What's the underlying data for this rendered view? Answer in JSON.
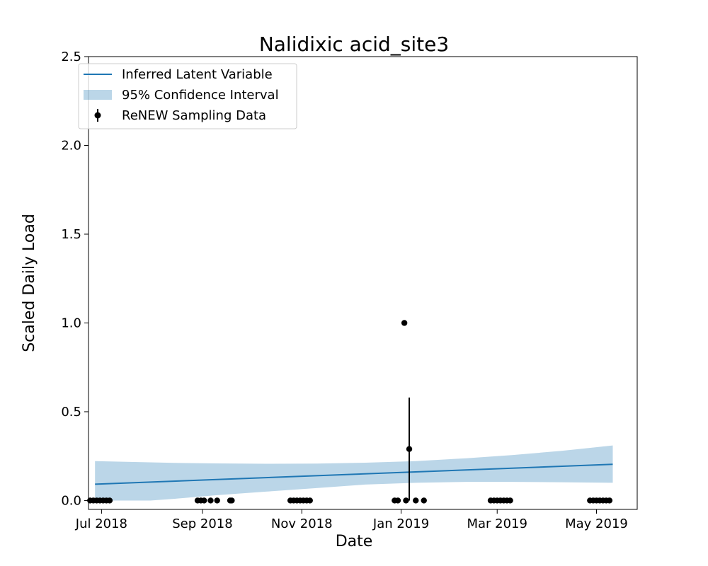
{
  "chart_data": {
    "type": "line",
    "title": "Nalidixic acid_site3",
    "xlabel": "Date",
    "ylabel": "Scaled Daily Load",
    "xlim": [
      "2018-06-23",
      "2019-05-26"
    ],
    "ylim": [
      -0.05,
      2.5
    ],
    "x_ticks": [
      {
        "date": "2018-07-01",
        "label": "Jul 2018"
      },
      {
        "date": "2018-09-01",
        "label": "Sep 2018"
      },
      {
        "date": "2018-11-01",
        "label": "Nov 2018"
      },
      {
        "date": "2019-01-01",
        "label": "Jan 2019"
      },
      {
        "date": "2019-03-01",
        "label": "Mar 2019"
      },
      {
        "date": "2019-05-01",
        "label": "May 2019"
      }
    ],
    "y_ticks": [
      {
        "value": 0.0,
        "label": "0.0"
      },
      {
        "value": 0.5,
        "label": "0.5"
      },
      {
        "value": 1.0,
        "label": "1.0"
      },
      {
        "value": 1.5,
        "label": "1.5"
      },
      {
        "value": 2.0,
        "label": "2.0"
      },
      {
        "value": 2.5,
        "label": "2.5"
      }
    ],
    "legend": {
      "position": "upper-left",
      "entries": [
        {
          "label": "Inferred Latent Variable",
          "kind": "line"
        },
        {
          "label": "95% Confidence Interval",
          "kind": "band"
        },
        {
          "label": "ReNEW Sampling Data",
          "kind": "errorbar"
        }
      ]
    },
    "series": [
      {
        "name": "Inferred Latent Variable",
        "color": "#1f77b4",
        "x": [
          "2018-06-27",
          "2019-05-11"
        ],
        "y": [
          0.092,
          0.204
        ]
      },
      {
        "name": "95% Confidence Interval",
        "color": "#1f77b4",
        "opacity": 0.3,
        "x": [
          "2018-06-27",
          "2018-07-31",
          "2018-08-15",
          "2018-09-10",
          "2018-10-10",
          "2018-11-10",
          "2018-12-10",
          "2019-01-10",
          "2019-02-10",
          "2019-03-10",
          "2019-04-10",
          "2019-05-11"
        ],
        "lower": [
          0.0,
          0.0,
          0.01,
          0.03,
          0.05,
          0.07,
          0.09,
          0.1,
          0.105,
          0.105,
          0.103,
          0.1
        ],
        "upper": [
          0.222,
          0.215,
          0.212,
          0.209,
          0.207,
          0.208,
          0.213,
          0.222,
          0.238,
          0.256,
          0.28,
          0.31
        ]
      },
      {
        "name": "ReNEW Sampling Data",
        "color": "#000000",
        "points": [
          {
            "x": "2018-06-24",
            "y": 0.0
          },
          {
            "x": "2018-06-26",
            "y": 0.0
          },
          {
            "x": "2018-06-28",
            "y": 0.0
          },
          {
            "x": "2018-06-30",
            "y": 0.0
          },
          {
            "x": "2018-07-02",
            "y": 0.0
          },
          {
            "x": "2018-07-04",
            "y": 0.0
          },
          {
            "x": "2018-07-06",
            "y": 0.0
          },
          {
            "x": "2018-08-29",
            "y": 0.0
          },
          {
            "x": "2018-08-31",
            "y": 0.0
          },
          {
            "x": "2018-09-02",
            "y": 0.0
          },
          {
            "x": "2018-09-06",
            "y": 0.0
          },
          {
            "x": "2018-09-10",
            "y": 0.0
          },
          {
            "x": "2018-09-18",
            "y": 0.0
          },
          {
            "x": "2018-09-19",
            "y": 0.0
          },
          {
            "x": "2018-10-25",
            "y": 0.0
          },
          {
            "x": "2018-10-27",
            "y": 0.0
          },
          {
            "x": "2018-10-29",
            "y": 0.0
          },
          {
            "x": "2018-10-31",
            "y": 0.0
          },
          {
            "x": "2018-11-02",
            "y": 0.0
          },
          {
            "x": "2018-11-04",
            "y": 0.0
          },
          {
            "x": "2018-11-06",
            "y": 0.0
          },
          {
            "x": "2018-12-28",
            "y": 0.0
          },
          {
            "x": "2018-12-30",
            "y": 0.0
          },
          {
            "x": "2019-01-03",
            "y": 1.0
          },
          {
            "x": "2019-01-04",
            "y": 0.0
          },
          {
            "x": "2019-01-06",
            "y": 0.29,
            "err": 0.29
          },
          {
            "x": "2019-01-10",
            "y": 0.0
          },
          {
            "x": "2019-01-15",
            "y": 0.0
          },
          {
            "x": "2019-02-25",
            "y": 0.0
          },
          {
            "x": "2019-02-27",
            "y": 0.0
          },
          {
            "x": "2019-03-01",
            "y": 0.0
          },
          {
            "x": "2019-03-03",
            "y": 0.0
          },
          {
            "x": "2019-03-05",
            "y": 0.0
          },
          {
            "x": "2019-03-07",
            "y": 0.0
          },
          {
            "x": "2019-03-09",
            "y": 0.0
          },
          {
            "x": "2019-04-27",
            "y": 0.0
          },
          {
            "x": "2019-04-29",
            "y": 0.0
          },
          {
            "x": "2019-05-01",
            "y": 0.0
          },
          {
            "x": "2019-05-03",
            "y": 0.0
          },
          {
            "x": "2019-05-05",
            "y": 0.0
          },
          {
            "x": "2019-05-07",
            "y": 0.0
          },
          {
            "x": "2019-05-09",
            "y": 0.0
          }
        ]
      }
    ]
  }
}
